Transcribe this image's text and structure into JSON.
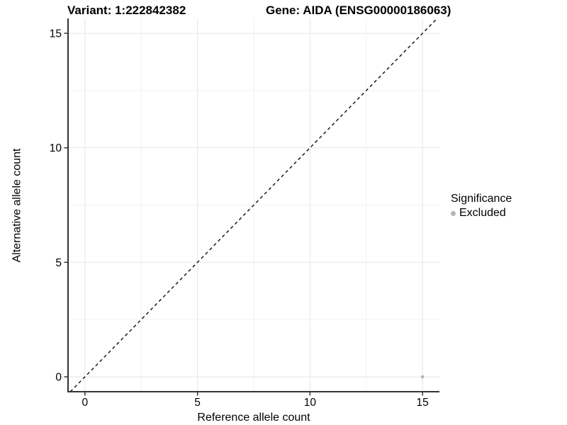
{
  "chart_data": {
    "type": "scatter",
    "title_left": "Variant: 1:222842382",
    "title_right": "Gene: AIDA (ENSG00000186063)",
    "xlabel": "Reference allele count",
    "ylabel": "Alternative allele count",
    "xlim": [
      -0.75,
      15.75
    ],
    "ylim": [
      -0.65,
      15.65
    ],
    "xticks": [
      0,
      5,
      10,
      15
    ],
    "yticks": [
      0,
      5,
      10,
      15
    ],
    "x_minor_gridlines": [
      2.5,
      7.5,
      12.5
    ],
    "y_minor_gridlines": [
      2.5,
      7.5,
      12.5
    ],
    "grid": "major+minor",
    "identity_line": {
      "type": "abline",
      "slope": 1,
      "intercept": 0,
      "style": "dashed"
    },
    "series": [
      {
        "name": "Excluded",
        "color": "#b4b4b4",
        "points": [
          [
            15,
            0
          ]
        ]
      }
    ],
    "legend": {
      "title": "Significance",
      "position": "right",
      "items": [
        {
          "label": "Excluded",
          "color": "#b4b4b4"
        }
      ]
    },
    "colors": {
      "grid_major": "#e6e6e6",
      "grid_minor": "#f2f2f2",
      "axis_line": "#333333",
      "tick_mark": "#333333",
      "tick_label": "#000000",
      "identity_line": "#1a1a1a",
      "background": "#ffffff"
    }
  }
}
